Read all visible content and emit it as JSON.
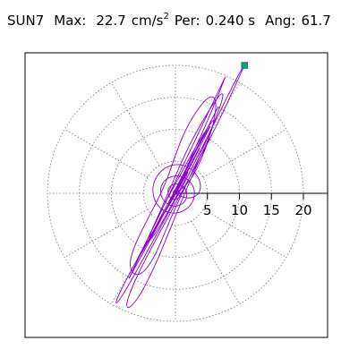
{
  "header": {
    "station": "SUN7",
    "max_label": "Max:",
    "max_value": "22.7",
    "max_unit": "cm/s",
    "max_unit_exp": "2",
    "per_label": "Per:",
    "per_value": "0.240 s",
    "ang_label": "Ang:",
    "ang_value": "61.7"
  },
  "chart_data": {
    "type": "scatter",
    "subtype": "polar-particle-motion",
    "title": "SUN7 Max: 22.7 cm/s2 Per: 0.240 s Ang: 61.7",
    "radial_ticks": [
      "5",
      "10",
      "15",
      "20"
    ],
    "radial_tick_values": [
      5,
      10,
      15,
      20
    ],
    "rlim": [
      0,
      22.7
    ],
    "grid": true,
    "grid_style": "dotted circles with spokes every 30 degrees",
    "max_point": {
      "x": 10.8,
      "y": 20.0
    },
    "series": [
      {
        "color": "#8a00d4",
        "path": [
          [
            0,
            0
          ],
          [
            1.2,
            0.8
          ],
          [
            2.6,
            2.4
          ],
          [
            4.0,
            5.2
          ],
          [
            5.2,
            8.3
          ],
          [
            6.1,
            11.6
          ],
          [
            6.4,
            14.1
          ],
          [
            5.9,
            15.3
          ],
          [
            4.6,
            14.6
          ],
          [
            3.0,
            12.4
          ],
          [
            1.4,
            9.6
          ],
          [
            0.1,
            6.3
          ],
          [
            -1.0,
            3.0
          ],
          [
            -2.2,
            0.1
          ],
          [
            -3.6,
            -2.6
          ],
          [
            -5.0,
            -5.3
          ],
          [
            -6.3,
            -8.0
          ],
          [
            -7.1,
            -10.4
          ],
          [
            -7.0,
            -12.1
          ],
          [
            -6.1,
            -12.9
          ],
          [
            -4.8,
            -12.2
          ],
          [
            -3.5,
            -10.3
          ],
          [
            -2.3,
            -7.7
          ],
          [
            -1.1,
            -4.8
          ],
          [
            0.2,
            -1.8
          ],
          [
            1.7,
            1.4
          ],
          [
            3.3,
            4.8
          ],
          [
            4.9,
            8.4
          ],
          [
            6.3,
            11.7
          ],
          [
            7.2,
            14.2
          ],
          [
            7.5,
            15.6
          ],
          [
            7.0,
            15.5
          ],
          [
            5.7,
            13.7
          ],
          [
            4.0,
            10.9
          ],
          [
            2.2,
            7.6
          ],
          [
            0.6,
            4.1
          ],
          [
            -0.9,
            0.6
          ],
          [
            -2.4,
            -2.9
          ],
          [
            -4.0,
            -6.4
          ],
          [
            -5.5,
            -9.6
          ],
          [
            -6.7,
            -12.1
          ],
          [
            -7.3,
            -13.4
          ],
          [
            -7.1,
            -13.0
          ],
          [
            -6.1,
            -11.2
          ],
          [
            -4.6,
            -8.5
          ],
          [
            -2.9,
            -5.3
          ],
          [
            -1.1,
            -1.9
          ],
          [
            0.7,
            1.6
          ],
          [
            2.5,
            5.2
          ],
          [
            4.2,
            8.6
          ],
          [
            5.6,
            11.4
          ],
          [
            6.5,
            13.2
          ],
          [
            6.8,
            13.7
          ],
          [
            6.3,
            12.7
          ],
          [
            5.1,
            10.4
          ],
          [
            3.5,
            7.4
          ],
          [
            1.8,
            4.1
          ],
          [
            0.1,
            0.8
          ],
          [
            -1.6,
            -2.4
          ],
          [
            -3.2,
            -5.4
          ],
          [
            -4.6,
            -8.0
          ],
          [
            -5.7,
            -9.9
          ],
          [
            -6.2,
            -10.8
          ],
          [
            -6.0,
            -10.5
          ],
          [
            -5.1,
            -9.0
          ],
          [
            -3.7,
            -6.6
          ],
          [
            -2.1,
            -3.7
          ],
          [
            -0.4,
            -0.6
          ],
          [
            1.3,
            2.5
          ],
          [
            2.9,
            5.5
          ],
          [
            4.2,
            8.0
          ],
          [
            5.1,
            9.8
          ],
          [
            5.5,
            10.6
          ],
          [
            5.2,
            10.2
          ],
          [
            4.3,
            8.6
          ],
          [
            3.0,
            6.2
          ],
          [
            1.5,
            3.4
          ],
          [
            0.0,
            0.6
          ],
          [
            -1.5,
            -2.2
          ],
          [
            -2.8,
            -4.7
          ],
          [
            -3.9,
            -6.7
          ],
          [
            -4.6,
            -7.9
          ],
          [
            -4.8,
            -8.2
          ],
          [
            -4.3,
            -7.4
          ],
          [
            -3.4,
            -5.8
          ],
          [
            -2.1,
            -3.6
          ],
          [
            -0.7,
            -1.2
          ],
          [
            0.7,
            1.3
          ],
          [
            2.0,
            3.6
          ],
          [
            3.0,
            5.5
          ],
          [
            3.6,
            6.7
          ],
          [
            3.8,
            7.1
          ],
          [
            3.4,
            6.4
          ],
          [
            2.6,
            4.9
          ],
          [
            1.6,
            3.0
          ],
          [
            0.5,
            0.9
          ],
          [
            -0.6,
            -1.0
          ],
          [
            -1.6,
            -2.7
          ],
          [
            -2.3,
            -4.0
          ],
          [
            -2.7,
            -4.7
          ],
          [
            -2.6,
            -4.6
          ],
          [
            -2.1,
            -3.7
          ],
          [
            -1.3,
            -2.4
          ],
          [
            -0.4,
            -0.8
          ],
          [
            0.5,
            0.8
          ],
          [
            1.3,
            2.2
          ],
          [
            1.8,
            3.2
          ],
          [
            2.0,
            3.6
          ],
          [
            1.8,
            3.3
          ],
          [
            1.3,
            2.4
          ],
          [
            0.6,
            1.2
          ],
          [
            -0.1,
            -0.1
          ],
          [
            -0.8,
            -1.3
          ],
          [
            -1.2,
            -2.1
          ],
          [
            -1.4,
            -2.5
          ],
          [
            -1.2,
            -2.3
          ],
          [
            -0.8,
            -1.5
          ],
          [
            -0.2,
            -0.5
          ],
          [
            0.4,
            0.5
          ],
          [
            0.9,
            1.4
          ],
          [
            1.1,
            1.9
          ],
          [
            1.0,
            1.9
          ],
          [
            0.7,
            1.3
          ],
          [
            0.2,
            0.5
          ],
          [
            -0.3,
            -0.3
          ],
          [
            -0.6,
            -0.9
          ],
          [
            -0.8,
            -1.2
          ],
          [
            -0.6,
            -1.1
          ],
          [
            -0.3,
            -0.6
          ],
          [
            0.1,
            0.0
          ],
          [
            0.4,
            0.4
          ],
          [
            0.5,
            0.7
          ],
          [
            0.4,
            0.6
          ],
          [
            0.1,
            0.2
          ],
          [
            -0.2,
            -0.2
          ],
          [
            -0.3,
            -0.4
          ],
          [
            -0.2,
            -0.3
          ],
          [
            0.0,
            0.0
          ],
          [
            1.5,
            -0.8
          ],
          [
            3.1,
            -0.6
          ],
          [
            4.0,
            0.5
          ],
          [
            3.8,
            2.2
          ],
          [
            2.6,
            3.8
          ],
          [
            0.8,
            4.6
          ],
          [
            -1.2,
            4.3
          ],
          [
            -2.8,
            3.0
          ],
          [
            -3.6,
            1.1
          ],
          [
            -3.4,
            -0.9
          ],
          [
            -2.3,
            -2.5
          ],
          [
            -0.6,
            -3.2
          ],
          [
            1.2,
            -2.9
          ],
          [
            2.6,
            -1.7
          ],
          [
            3.1,
            0.0
          ],
          [
            2.6,
            1.6
          ],
          [
            1.3,
            2.6
          ],
          [
            -0.3,
            2.8
          ],
          [
            -1.7,
            2.1
          ],
          [
            -2.4,
            0.8
          ],
          [
            -2.2,
            -0.7
          ],
          [
            -1.2,
            -1.8
          ],
          [
            0.2,
            -2.1
          ],
          [
            1.4,
            -1.5
          ],
          [
            1.9,
            -0.3
          ],
          [
            1.5,
            0.9
          ],
          [
            0.5,
            1.5
          ],
          [
            -0.6,
            1.4
          ],
          [
            -1.2,
            0.6
          ],
          [
            -1.1,
            -0.4
          ],
          [
            -0.4,
            -1.0
          ],
          [
            0.4,
            -0.9
          ],
          [
            0.8,
            -0.3
          ],
          [
            0.6,
            0.4
          ],
          [
            0.0,
            0.6
          ],
          [
            -0.4,
            0.2
          ],
          [
            -0.3,
            -0.2
          ],
          [
            0.0,
            0.0
          ],
          [
            2.1,
            4.9
          ],
          [
            4.4,
            9.9
          ],
          [
            6.4,
            14.6
          ],
          [
            7.6,
            17.7
          ],
          [
            7.9,
            18.4
          ],
          [
            7.2,
            17.0
          ],
          [
            5.6,
            13.6
          ],
          [
            3.5,
            9.2
          ],
          [
            1.3,
            4.6
          ],
          [
            -0.8,
            0.2
          ],
          [
            -2.9,
            -4.2
          ],
          [
            -5.1,
            -8.7
          ],
          [
            -7.4,
            -13.0
          ],
          [
            -9.0,
            -16.1
          ],
          [
            -9.4,
            -17.4
          ],
          [
            -8.6,
            -16.5
          ],
          [
            -7.0,
            -13.8
          ],
          [
            -4.9,
            -10.0
          ],
          [
            -2.6,
            -5.8
          ],
          [
            -0.3,
            -1.6
          ],
          [
            2.0,
            2.8
          ],
          [
            4.3,
            7.4
          ],
          [
            6.6,
            12.0
          ],
          [
            8.6,
            16.1
          ],
          [
            10.1,
            19.0
          ],
          [
            10.8,
            20.0
          ],
          [
            9.6,
            17.4
          ],
          [
            7.7,
            13.2
          ],
          [
            5.5,
            8.7
          ],
          [
            3.2,
            4.3
          ],
          [
            1.0,
            0.2
          ],
          [
            -1.2,
            -3.8
          ],
          [
            -3.3,
            -7.7
          ],
          [
            -5.2,
            -11.3
          ],
          [
            -6.7,
            -14.5
          ],
          [
            -7.6,
            -16.9
          ],
          [
            -7.6,
            -18.0
          ],
          [
            -6.8,
            -17.6
          ],
          [
            -5.4,
            -15.7
          ],
          [
            -3.8,
            -12.6
          ],
          [
            -2.2,
            -9.0
          ],
          [
            -0.7,
            -5.3
          ],
          [
            0.8,
            -1.6
          ],
          [
            2.3,
            2.0
          ],
          [
            3.8,
            5.4
          ],
          [
            5.1,
            8.4
          ],
          [
            5.9,
            10.6
          ],
          [
            6.1,
            11.6
          ],
          [
            5.6,
            11.1
          ],
          [
            4.4,
            9.3
          ],
          [
            2.8,
            6.6
          ],
          [
            1.1,
            3.5
          ],
          [
            -0.6,
            0.4
          ],
          [
            -2.1,
            -2.5
          ],
          [
            -3.3,
            -4.9
          ],
          [
            -4.0,
            -6.6
          ],
          [
            -4.1,
            -7.3
          ],
          [
            -3.6,
            -6.9
          ],
          [
            -2.6,
            -5.4
          ],
          [
            -1.4,
            -3.3
          ],
          [
            -0.2,
            -1.1
          ],
          [
            0.9,
            1.0
          ],
          [
            1.7,
            2.6
          ],
          [
            2.0,
            3.5
          ],
          [
            1.8,
            3.5
          ],
          [
            1.2,
            2.6
          ],
          [
            0.4,
            1.2
          ],
          [
            -0.4,
            -0.2
          ],
          [
            -0.9,
            -1.3
          ],
          [
            -1.1,
            -1.8
          ],
          [
            -0.9,
            -1.7
          ],
          [
            -0.5,
            -1.0
          ],
          [
            0.0,
            -0.2
          ],
          [
            0.4,
            0.5
          ],
          [
            0.5,
            0.8
          ],
          [
            0.3,
            0.6
          ],
          [
            0.0,
            0.1
          ],
          [
            -0.2,
            -0.2
          ],
          [
            -0.1,
            -0.2
          ],
          [
            0.0,
            0.0
          ]
        ]
      }
    ]
  }
}
